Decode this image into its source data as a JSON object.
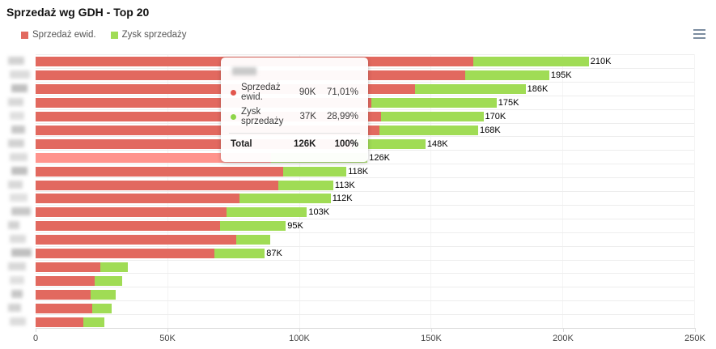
{
  "title": "Sprzedaż wg GDH - Top 20",
  "legend": [
    {
      "label": "Sprzedaż ewid.",
      "color": "#e2695f"
    },
    {
      "label": "Zysk sprzedaży",
      "color": "#a0dc55"
    }
  ],
  "menu_icon_name": "hamburger-menu-icon",
  "colors": {
    "series_red": "#e2695f",
    "series_green": "#a0dc55",
    "series_red_highlight": "#ff948d",
    "series_green_highlight": "#b4e47d",
    "grid": "#ededed",
    "axis": "#dcdcdc"
  },
  "chart_data": {
    "type": "bar",
    "orientation": "horizontal",
    "stacked": true,
    "title": "Sprzedaż wg GDH - Top 20",
    "series_names": [
      "Sprzedaż ewid.",
      "Zysk sprzedaży"
    ],
    "categories_redacted": true,
    "category_blur_widths": [
      20,
      25,
      20,
      19,
      18,
      17,
      20,
      22,
      20,
      18,
      22,
      24,
      14,
      20,
      25,
      22,
      18,
      14,
      16,
      20
    ],
    "xlim_k": [
      0,
      250
    ],
    "x_ticks": [
      {
        "label": "0",
        "value_k": 0
      },
      {
        "label": "50K",
        "value_k": 50
      },
      {
        "label": "100K",
        "value_k": 100
      },
      {
        "label": "150K",
        "value_k": 150
      },
      {
        "label": "200K",
        "value_k": 200
      },
      {
        "label": "250K",
        "value_k": 250
      }
    ],
    "rows": [
      {
        "sprzedaz_k": 166.0,
        "zysk_k": 44.0,
        "total_label": "210K",
        "highlighted": false
      },
      {
        "sprzedaz_k": 163.0,
        "zysk_k": 32.0,
        "total_label": "195K",
        "highlighted": false
      },
      {
        "sprzedaz_k": 144.0,
        "zysk_k": 42.0,
        "total_label": "186K",
        "highlighted": false
      },
      {
        "sprzedaz_k": 127.5,
        "zysk_k": 47.5,
        "total_label": "175K",
        "highlighted": false
      },
      {
        "sprzedaz_k": 131.0,
        "zysk_k": 39.0,
        "total_label": "170K",
        "highlighted": false
      },
      {
        "sprzedaz_k": 130.5,
        "zysk_k": 37.5,
        "total_label": "168K",
        "highlighted": false
      },
      {
        "sprzedaz_k": 120.5,
        "zysk_k": 27.5,
        "total_label": "148K",
        "highlighted": false
      },
      {
        "sprzedaz_k": 89.5,
        "zysk_k": 36.5,
        "total_label": "126K",
        "highlighted": true
      },
      {
        "sprzedaz_k": 94.0,
        "zysk_k": 24.0,
        "total_label": "118K",
        "highlighted": false
      },
      {
        "sprzedaz_k": 92.0,
        "zysk_k": 21.0,
        "total_label": "113K",
        "highlighted": false
      },
      {
        "sprzedaz_k": 77.5,
        "zysk_k": 34.5,
        "total_label": "112K",
        "highlighted": false
      },
      {
        "sprzedaz_k": 72.5,
        "zysk_k": 30.5,
        "total_label": "103K",
        "highlighted": false
      },
      {
        "sprzedaz_k": 70.0,
        "zysk_k": 25.0,
        "total_label": "95K",
        "highlighted": false
      },
      {
        "sprzedaz_k": 76.0,
        "zysk_k": 13.0,
        "total_label": "",
        "highlighted": false
      },
      {
        "sprzedaz_k": 68.0,
        "zysk_k": 19.0,
        "total_label": "87K",
        "highlighted": false
      },
      {
        "sprzedaz_k": 24.5,
        "zysk_k": 10.5,
        "total_label": "",
        "highlighted": false
      },
      {
        "sprzedaz_k": 22.5,
        "zysk_k": 10.5,
        "total_label": "",
        "highlighted": false
      },
      {
        "sprzedaz_k": 21.0,
        "zysk_k": 9.5,
        "total_label": "",
        "highlighted": false
      },
      {
        "sprzedaz_k": 21.5,
        "zysk_k": 7.5,
        "total_label": "",
        "highlighted": false
      },
      {
        "sprzedaz_k": 18.0,
        "zysk_k": 8.0,
        "total_label": "",
        "highlighted": false
      }
    ]
  },
  "tooltip": {
    "header_redacted": true,
    "rows": [
      {
        "dot_color": "#e2574e",
        "label": "Sprzedaż ewid.",
        "value": "90K",
        "pct": "71,01%"
      },
      {
        "dot_color": "#8ed549",
        "label": "Zysk sprzedaży",
        "value": "37K",
        "pct": "28,99%"
      }
    ],
    "total": {
      "label": "Total",
      "value": "126K",
      "pct": "100%"
    }
  }
}
